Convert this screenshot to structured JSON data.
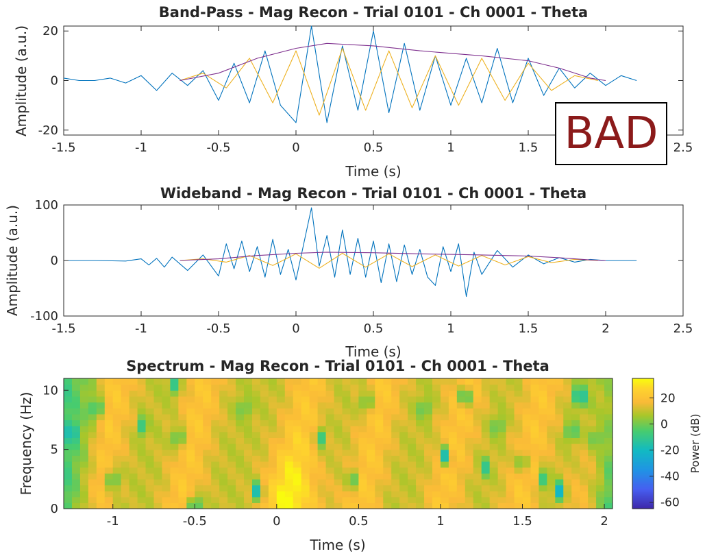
{
  "badge": {
    "label": "BAD",
    "color": "#8b1a1a"
  },
  "colors": {
    "signal": "#0072bd",
    "filtered": "#edb120",
    "envelope": "#7e2f8e"
  },
  "chart_data": [
    {
      "type": "line",
      "title": "Band-Pass - Mag Recon - Trial 0101 - Ch 0001 - Theta",
      "xlabel": "Time (s)",
      "ylabel": "Amplitude (a.u.)",
      "xlim": [
        -1.5,
        2.5
      ],
      "ylim": [
        -22,
        22
      ],
      "xticks": [
        "-1.5",
        "-1",
        "-0.5",
        "0",
        "0.5",
        "1",
        "1.5",
        "2",
        "2.5"
      ],
      "yticks": [
        "-20",
        "0",
        "20"
      ],
      "grid": false,
      "series": [
        {
          "color": "#0072bd",
          "style": "band-passed signal",
          "x": [
            -1.5,
            -1.4,
            -1.3,
            -1.2,
            -1.1,
            -1.0,
            -0.9,
            -0.8,
            -0.7,
            -0.6,
            -0.5,
            -0.4,
            -0.3,
            -0.2,
            -0.1,
            0.0,
            0.1,
            0.2,
            0.3,
            0.4,
            0.5,
            0.6,
            0.7,
            0.8,
            0.9,
            1.0,
            1.1,
            1.2,
            1.3,
            1.4,
            1.5,
            1.6,
            1.7,
            1.8,
            1.9,
            2.0,
            2.1,
            2.2
          ],
          "y": [
            1,
            0,
            0,
            1,
            -1,
            2,
            -4,
            3,
            -2,
            4,
            -8,
            7,
            -9,
            12,
            -10,
            -17,
            22,
            -17,
            14,
            -12,
            20,
            -13,
            15,
            -12,
            10,
            -10,
            9,
            -9,
            13,
            -9,
            9,
            -6,
            5,
            -3,
            3,
            -2,
            2,
            0
          ]
        },
        {
          "color": "#edb120",
          "style": "theta-filtered",
          "x": [
            -0.75,
            -0.6,
            -0.45,
            -0.3,
            -0.15,
            0.0,
            0.15,
            0.3,
            0.45,
            0.6,
            0.75,
            0.9,
            1.05,
            1.2,
            1.35,
            1.5,
            1.65,
            1.8,
            1.95
          ],
          "y": [
            0,
            3,
            -3,
            9,
            -9,
            12,
            -14,
            13,
            -12,
            12,
            -11,
            10,
            -10,
            9,
            -8,
            7,
            -4,
            2,
            0
          ]
        },
        {
          "color": "#7e2f8e",
          "style": "envelope",
          "x": [
            -0.75,
            -0.5,
            -0.25,
            0.0,
            0.2,
            0.5,
            0.8,
            1.0,
            1.2,
            1.5,
            1.7,
            1.9,
            2.0
          ],
          "y": [
            0,
            3,
            9,
            13,
            15,
            14,
            12,
            11,
            10,
            8,
            5,
            1,
            0
          ]
        }
      ]
    },
    {
      "type": "line",
      "title": "Wideband - Mag Recon - Trial 0101 - Ch 0001 - Theta",
      "xlabel": "Time (s)",
      "ylabel": "Amplitude (a.u.)",
      "xlim": [
        -1.5,
        2.5
      ],
      "ylim": [
        -100,
        100
      ],
      "xticks": [
        "-1.5",
        "-1",
        "-0.5",
        "0",
        "0.5",
        "1",
        "1.5",
        "2",
        "2.5"
      ],
      "yticks": [
        "-100",
        "0",
        "100"
      ],
      "grid": false,
      "series": [
        {
          "color": "#0072bd",
          "style": "wideband signal",
          "x": [
            -1.5,
            -1.3,
            -1.1,
            -1.0,
            -0.95,
            -0.9,
            -0.85,
            -0.8,
            -0.7,
            -0.6,
            -0.5,
            -0.45,
            -0.4,
            -0.35,
            -0.3,
            -0.25,
            -0.2,
            -0.15,
            -0.1,
            -0.05,
            0.0,
            0.05,
            0.1,
            0.15,
            0.2,
            0.25,
            0.3,
            0.35,
            0.4,
            0.45,
            0.5,
            0.55,
            0.6,
            0.65,
            0.7,
            0.75,
            0.8,
            0.85,
            0.9,
            0.95,
            1.0,
            1.05,
            1.1,
            1.15,
            1.2,
            1.3,
            1.4,
            1.5,
            1.6,
            1.7,
            1.8,
            1.9,
            2.0,
            2.1,
            2.2
          ],
          "y": [
            0,
            0,
            -1,
            3,
            -8,
            4,
            -12,
            6,
            -18,
            10,
            -28,
            30,
            -15,
            35,
            -20,
            25,
            -30,
            38,
            -25,
            20,
            -35,
            30,
            95,
            -10,
            45,
            -30,
            55,
            -25,
            40,
            -30,
            35,
            -40,
            30,
            -38,
            28,
            -25,
            20,
            -30,
            -45,
            25,
            -20,
            30,
            -65,
            15,
            -25,
            18,
            -12,
            10,
            -6,
            5,
            -3,
            2,
            0,
            0,
            0
          ]
        },
        {
          "color": "#edb120",
          "style": "theta-filtered",
          "x": [
            -0.75,
            -0.6,
            -0.45,
            -0.3,
            -0.15,
            0.0,
            0.15,
            0.3,
            0.45,
            0.6,
            0.75,
            0.9,
            1.05,
            1.2,
            1.35,
            1.5,
            1.65,
            1.8,
            1.95
          ],
          "y": [
            0,
            3,
            -3,
            9,
            -9,
            12,
            -14,
            13,
            -12,
            12,
            -11,
            10,
            -10,
            9,
            -8,
            7,
            -4,
            2,
            0
          ]
        },
        {
          "color": "#7e2f8e",
          "style": "envelope",
          "x": [
            -0.75,
            -0.5,
            -0.25,
            0.0,
            0.2,
            0.5,
            0.8,
            1.0,
            1.2,
            1.5,
            1.7,
            1.9,
            2.0
          ],
          "y": [
            0,
            3,
            9,
            13,
            15,
            14,
            12,
            11,
            10,
            8,
            5,
            1,
            0
          ]
        }
      ]
    },
    {
      "type": "heatmap",
      "title": "Spectrum - Mag Recon - Trial 0101 - Ch 0001 - Theta",
      "xlabel": "Time (s)",
      "ylabel": "Frequency (Hz)",
      "xlim": [
        -1.3,
        2.05
      ],
      "ylim": [
        0,
        11
      ],
      "xticks": [
        "-1",
        "-0.5",
        "0",
        "0.5",
        "1",
        "1.5",
        "2"
      ],
      "yticks": [
        "0",
        "5",
        "10"
      ],
      "colorbar": {
        "label": "Power (dB)",
        "range": [
          -65,
          35
        ],
        "ticks": [
          "-60",
          "-40",
          "-20",
          "0",
          "20"
        ]
      },
      "ridge_centers": [
        -1.05,
        -0.52,
        0.12,
        0.58,
        1.08,
        1.55,
        1.95
      ],
      "dark_spots": [
        [
          -1.25,
          6.5,
          -25
        ],
        [
          -1.1,
          8.5,
          -20
        ],
        [
          -1.0,
          2.5,
          -15
        ],
        [
          -0.82,
          7.0,
          -10
        ],
        [
          -0.63,
          10.5,
          -12
        ],
        [
          -0.6,
          6.0,
          -15
        ],
        [
          -0.5,
          0.3,
          -20
        ],
        [
          -0.2,
          8.5,
          -8
        ],
        [
          -0.12,
          1.5,
          -20
        ],
        [
          0.27,
          6.0,
          -10
        ],
        [
          0.46,
          2.5,
          -8
        ],
        [
          0.55,
          9.0,
          -10
        ],
        [
          0.9,
          8.5,
          -10
        ],
        [
          1.03,
          4.5,
          -20
        ],
        [
          1.15,
          9.5,
          -20
        ],
        [
          1.27,
          3.5,
          -12
        ],
        [
          1.35,
          7.0,
          -10
        ],
        [
          1.5,
          4.0,
          -10
        ],
        [
          1.63,
          2.5,
          -10
        ],
        [
          1.72,
          1.5,
          -25
        ],
        [
          1.8,
          6.5,
          -15
        ],
        [
          1.85,
          9.5,
          -30
        ],
        [
          1.95,
          6.0,
          -10
        ]
      ]
    }
  ]
}
